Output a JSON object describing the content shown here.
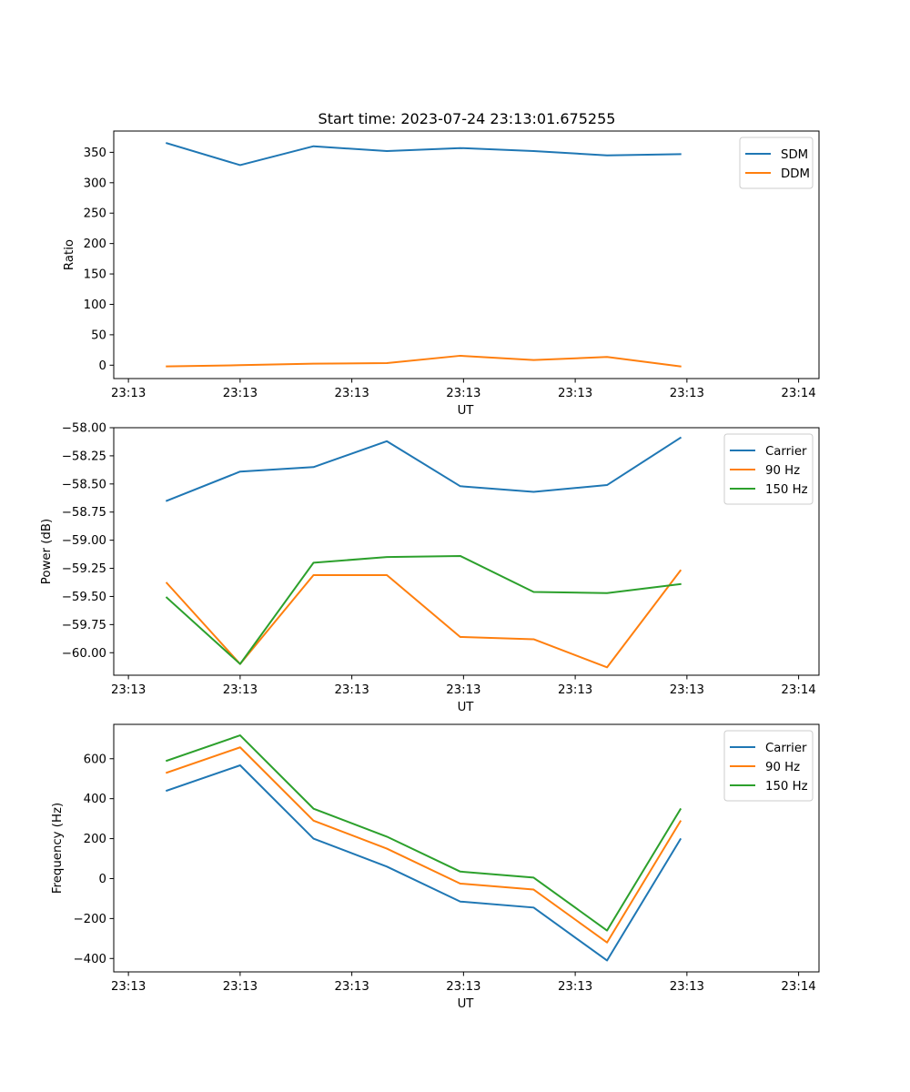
{
  "title": "Start time: 2023-07-24 23:13:01.675255",
  "colors": {
    "blue": "#1f77b4",
    "orange": "#ff7f0e",
    "green": "#2ca02c"
  },
  "chart_data": [
    {
      "type": "line",
      "xlabel": "UT",
      "ylabel": "Ratio",
      "x_ticks": {
        "positions": [
          -1.37,
          0,
          1.37,
          2.74,
          4.11,
          5.48,
          6.85
        ],
        "labels": [
          "23:13",
          "23:13",
          "23:13",
          "23:13",
          "23:13",
          "23:13",
          "23:14"
        ]
      },
      "xlim": [
        -1.55,
        7.1
      ],
      "y_ticks": [
        0,
        50,
        100,
        150,
        200,
        250,
        300,
        350
      ],
      "ylim": [
        -22,
        385
      ],
      "legend_position": "upper right",
      "series": [
        {
          "name": "SDM",
          "color": "#1f77b4",
          "x": [
            -0.9,
            0,
            0.9,
            1.8,
            2.7,
            3.6,
            4.5,
            5.4
          ],
          "y": [
            365,
            329,
            360,
            352,
            357,
            352,
            345,
            347
          ]
        },
        {
          "name": "DDM",
          "color": "#ff7f0e",
          "x": [
            -0.9,
            0,
            0.9,
            1.8,
            2.7,
            3.6,
            4.5,
            5.4
          ],
          "y": [
            -2,
            0,
            2.5,
            3.5,
            15.5,
            8.5,
            13.5,
            -2
          ]
        }
      ]
    },
    {
      "type": "line",
      "xlabel": "UT",
      "ylabel": "Power (dB)",
      "x_ticks": {
        "positions": [
          -1.37,
          0,
          1.37,
          2.74,
          4.11,
          5.48,
          6.85
        ],
        "labels": [
          "23:13",
          "23:13",
          "23:13",
          "23:13",
          "23:13",
          "23:13",
          "23:14"
        ]
      },
      "xlim": [
        -1.55,
        7.1
      ],
      "y_ticks": [
        -60.0,
        -59.75,
        -59.5,
        -59.25,
        -59.0,
        -58.75,
        -58.5,
        -58.25,
        -58.0
      ],
      "y_tick_labels": [
        "−60.00",
        "−59.75",
        "−59.50",
        "−59.25",
        "−59.00",
        "−58.75",
        "−58.50",
        "−58.25",
        "−58.00"
      ],
      "ylim": [
        -60.2,
        -58.0
      ],
      "legend_position": "upper right",
      "series": [
        {
          "name": "Carrier",
          "color": "#1f77b4",
          "x": [
            -0.9,
            0,
            0.9,
            1.8,
            2.7,
            3.6,
            4.5,
            5.4
          ],
          "y": [
            -58.65,
            -58.39,
            -58.35,
            -58.12,
            -58.52,
            -58.57,
            -58.51,
            -58.09
          ]
        },
        {
          "name": "90 Hz",
          "color": "#ff7f0e",
          "x": [
            -0.9,
            0,
            0.9,
            1.8,
            2.7,
            3.6,
            4.5,
            5.4
          ],
          "y": [
            -59.38,
            -60.1,
            -59.31,
            -59.31,
            -59.86,
            -59.88,
            -60.13,
            -59.27
          ]
        },
        {
          "name": "150 Hz",
          "color": "#2ca02c",
          "x": [
            -0.9,
            0,
            0.9,
            1.8,
            2.7,
            3.6,
            4.5,
            5.4
          ],
          "y": [
            -59.51,
            -60.1,
            -59.2,
            -59.15,
            -59.14,
            -59.46,
            -59.47,
            -59.39
          ]
        }
      ]
    },
    {
      "type": "line",
      "xlabel": "UT",
      "ylabel": "Frequency (Hz)",
      "x_ticks": {
        "positions": [
          -1.37,
          0,
          1.37,
          2.74,
          4.11,
          5.48,
          6.85
        ],
        "labels": [
          "23:13",
          "23:13",
          "23:13",
          "23:13",
          "23:13",
          "23:13",
          "23:14"
        ]
      },
      "xlim": [
        -1.55,
        7.1
      ],
      "y_ticks": [
        -400,
        -200,
        0,
        200,
        400,
        600
      ],
      "y_tick_labels": [
        "−400",
        "−200",
        "0",
        "200",
        "400",
        "600"
      ],
      "ylim": [
        -467,
        772
      ],
      "legend_position": "upper right",
      "series": [
        {
          "name": "Carrier",
          "color": "#1f77b4",
          "x": [
            -0.9,
            0,
            0.9,
            1.8,
            2.7,
            3.6,
            4.5,
            5.4
          ],
          "y": [
            440,
            567,
            200,
            60,
            -115,
            -145,
            -410,
            197
          ]
        },
        {
          "name": "90 Hz",
          "color": "#ff7f0e",
          "x": [
            -0.9,
            0,
            0.9,
            1.8,
            2.7,
            3.6,
            4.5,
            5.4
          ],
          "y": [
            530,
            657,
            290,
            150,
            -25,
            -55,
            -320,
            287
          ]
        },
        {
          "name": "150 Hz",
          "color": "#2ca02c",
          "x": [
            -0.9,
            0,
            0.9,
            1.8,
            2.7,
            3.6,
            4.5,
            5.4
          ],
          "y": [
            590,
            717,
            350,
            210,
            35,
            5,
            -260,
            347
          ]
        }
      ]
    }
  ]
}
